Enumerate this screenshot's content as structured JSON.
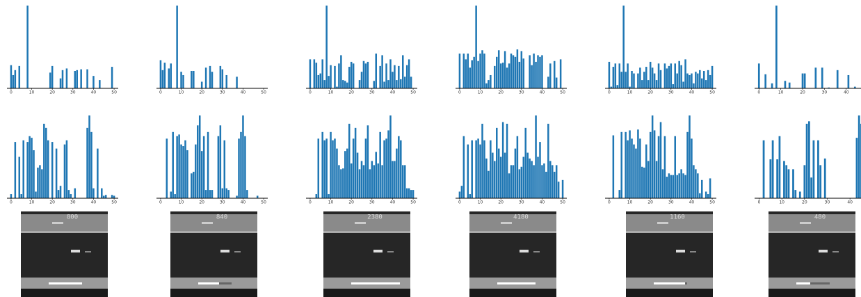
{
  "chart_data": [
    {
      "type": "bar",
      "color": "#1f77b4",
      "xlim": [
        -2,
        52
      ],
      "ylim": [
        0,
        100
      ],
      "xticks": [
        0,
        10,
        20,
        30,
        40,
        50
      ],
      "x": [
        0,
        1,
        2,
        4,
        8,
        19,
        20,
        24,
        25,
        27,
        31,
        32,
        34,
        37,
        40,
        43,
        49
      ],
      "values": [
        28,
        16,
        22,
        27,
        100,
        19,
        27,
        12,
        22,
        24,
        21,
        22,
        23,
        23,
        15,
        10,
        26
      ]
    },
    {
      "type": "bar",
      "color": "#1f77b4",
      "xlim": [
        -2,
        52
      ],
      "ylim": [
        0,
        100
      ],
      "xticks": [
        0,
        10,
        20,
        30,
        40,
        50
      ],
      "x": [
        0,
        1,
        2,
        4,
        5,
        8,
        10,
        11,
        15,
        16,
        20,
        22,
        24,
        25,
        29,
        30,
        32,
        37
      ],
      "values": [
        34,
        22,
        31,
        24,
        30,
        100,
        20,
        16,
        21,
        21,
        8,
        25,
        27,
        20,
        27,
        23,
        16,
        14
      ]
    },
    {
      "type": "bar",
      "color": "#1f77b4",
      "xlim": [
        -2,
        52
      ],
      "ylim": [
        0,
        100
      ],
      "xticks": [
        0,
        10,
        20,
        30,
        40,
        50
      ],
      "x": [
        0,
        1,
        2,
        3,
        4,
        5,
        6,
        7,
        8,
        9,
        10,
        11,
        12,
        13,
        14,
        15,
        16,
        17,
        18,
        19,
        20,
        21,
        22,
        23,
        24,
        25,
        26,
        27,
        28,
        29,
        30,
        31,
        32,
        33,
        34,
        35,
        36,
        37,
        38,
        39,
        40,
        41,
        42,
        43,
        44,
        45,
        46,
        47,
        48,
        49,
        50
      ],
      "values": [
        35,
        0,
        35,
        31,
        16,
        18,
        35,
        10,
        100,
        15,
        28,
        0,
        27,
        2,
        30,
        40,
        10,
        9,
        7,
        26,
        32,
        30,
        0,
        0,
        10,
        20,
        33,
        30,
        32,
        0,
        0,
        9,
        42,
        0,
        27,
        40,
        8,
        30,
        10,
        35,
        20,
        28,
        10,
        27,
        11,
        40,
        14,
        28,
        35,
        14,
        0
      ]
    },
    {
      "type": "bar",
      "color": "#1f77b4",
      "xlim": [
        -2,
        52
      ],
      "ylim": [
        0,
        100
      ],
      "xticks": [
        0,
        10,
        20,
        30,
        40,
        50
      ],
      "x": [
        0,
        1,
        2,
        3,
        4,
        5,
        6,
        7,
        8,
        9,
        10,
        11,
        12,
        13,
        14,
        15,
        16,
        17,
        18,
        19,
        20,
        21,
        22,
        23,
        24,
        25,
        26,
        27,
        28,
        29,
        30,
        31,
        32,
        33,
        34,
        35,
        36,
        37,
        38,
        39,
        40,
        41,
        42,
        43,
        44,
        45,
        46,
        47,
        48,
        49,
        50
      ],
      "values": [
        42,
        0,
        42,
        35,
        42,
        25,
        34,
        38,
        100,
        33,
        42,
        46,
        42,
        6,
        10,
        16,
        0,
        27,
        38,
        46,
        30,
        31,
        45,
        25,
        30,
        42,
        40,
        38,
        47,
        32,
        45,
        36,
        0,
        0,
        40,
        28,
        42,
        32,
        40,
        38,
        40,
        0,
        0,
        14,
        30,
        0,
        33,
        13,
        0,
        35,
        0
      ]
    },
    {
      "type": "bar",
      "color": "#1f77b4",
      "xlim": [
        -2,
        52
      ],
      "ylim": [
        0,
        100
      ],
      "xticks": [
        0,
        10,
        20,
        30,
        40,
        50
      ],
      "x": [
        0,
        1,
        2,
        3,
        4,
        5,
        6,
        7,
        8,
        9,
        10,
        11,
        12,
        13,
        14,
        15,
        16,
        17,
        18,
        19,
        20,
        21,
        22,
        23,
        24,
        25,
        26,
        27,
        28,
        29,
        30,
        31,
        32,
        33,
        34,
        35,
        36,
        37,
        38,
        39,
        40,
        41,
        42,
        43,
        44,
        45,
        46,
        47,
        48,
        49,
        50
      ],
      "values": [
        32,
        2,
        26,
        30,
        4,
        30,
        20,
        100,
        20,
        30,
        2,
        21,
        18,
        0,
        18,
        25,
        10,
        20,
        26,
        10,
        32,
        25,
        18,
        10,
        30,
        22,
        0,
        30,
        24,
        27,
        30,
        5,
        30,
        18,
        33,
        28,
        8,
        35,
        18,
        16,
        18,
        6,
        20,
        18,
        22,
        12,
        21,
        10,
        22,
        16,
        27
      ]
    },
    {
      "type": "bar",
      "color": "#1f77b4",
      "xlim": [
        -2,
        49
      ],
      "ylim": [
        0,
        100
      ],
      "xticks": [
        0,
        10,
        20,
        30,
        40
      ],
      "x": [
        0,
        3,
        6,
        8,
        12,
        14,
        20,
        21,
        26,
        29,
        32,
        36,
        41,
        44,
        48
      ],
      "values": [
        30,
        17,
        6,
        100,
        9,
        7,
        18,
        18,
        25,
        25,
        1,
        22,
        16,
        2,
        9
      ]
    },
    {
      "type": "bar",
      "color": "#1f77b4",
      "xlim": [
        -2,
        52
      ],
      "ylim": [
        0,
        100
      ],
      "xticks": [
        0,
        10,
        20,
        30,
        40,
        50
      ],
      "x": [
        0,
        1,
        2,
        3,
        4,
        5,
        6,
        7,
        8,
        9,
        10,
        11,
        12,
        13,
        14,
        15,
        16,
        17,
        18,
        19,
        20,
        21,
        22,
        23,
        24,
        25,
        26,
        27,
        28,
        29,
        30,
        31,
        32,
        33,
        34,
        35,
        36,
        37,
        38,
        39,
        40,
        41,
        42,
        43,
        44,
        45,
        46,
        47,
        48,
        49,
        50
      ],
      "values": [
        5,
        0,
        68,
        0,
        50,
        5,
        70,
        0,
        68,
        75,
        73,
        58,
        8,
        37,
        40,
        35,
        90,
        85,
        70,
        0,
        68,
        0,
        60,
        10,
        15,
        0,
        65,
        70,
        10,
        5,
        0,
        12,
        0,
        0,
        0,
        0,
        0,
        85,
        100,
        80,
        12,
        0,
        60,
        0,
        12,
        3,
        4,
        0,
        0,
        4,
        3
      ]
    },
    {
      "type": "bar",
      "color": "#1f77b4",
      "xlim": [
        -2,
        52
      ],
      "ylim": [
        0,
        100
      ],
      "xticks": [
        0,
        10,
        20,
        30,
        40,
        50
      ],
      "x": [
        0,
        1,
        2,
        3,
        4,
        5,
        6,
        7,
        8,
        9,
        10,
        11,
        12,
        13,
        14,
        15,
        16,
        17,
        18,
        19,
        20,
        21,
        22,
        23,
        24,
        25,
        26,
        27,
        28,
        29,
        30,
        31,
        32,
        33,
        34,
        35,
        36,
        37,
        38,
        39,
        40,
        41,
        42,
        43,
        44,
        45,
        46,
        47,
        48,
        49,
        50
      ],
      "values": [
        0,
        0,
        0,
        72,
        0,
        8,
        80,
        5,
        75,
        77,
        65,
        63,
        70,
        58,
        0,
        30,
        32,
        65,
        88,
        100,
        57,
        75,
        10,
        80,
        10,
        10,
        0,
        0,
        75,
        88,
        12,
        70,
        12,
        10,
        0,
        0,
        0,
        3,
        72,
        80,
        100,
        75,
        10,
        0,
        0,
        0,
        0,
        3,
        0,
        0,
        0
      ]
    },
    {
      "type": "bar",
      "color": "#1f77b4",
      "xlim": [
        -2,
        52
      ],
      "ylim": [
        0,
        100
      ],
      "xticks": [
        0,
        10,
        20,
        30,
        40,
        50
      ],
      "x": [
        0,
        1,
        2,
        3,
        4,
        5,
        6,
        7,
        8,
        9,
        10,
        11,
        12,
        13,
        14,
        15,
        16,
        17,
        18,
        19,
        20,
        21,
        22,
        23,
        24,
        25,
        26,
        27,
        28,
        29,
        30,
        31,
        32,
        33,
        34,
        35,
        36,
        37,
        38,
        39,
        40,
        41,
        42,
        43,
        44,
        45,
        46,
        47,
        48,
        49,
        50
      ],
      "values": [
        0,
        0,
        0,
        5,
        72,
        0,
        80,
        70,
        72,
        5,
        80,
        70,
        72,
        60,
        40,
        35,
        36,
        57,
        60,
        90,
        42,
        72,
        85,
        55,
        35,
        45,
        40,
        72,
        88,
        35,
        45,
        40,
        56,
        42,
        80,
        40,
        70,
        72,
        82,
        100,
        45,
        45,
        60,
        75,
        70,
        40,
        40,
        12,
        12,
        10,
        10
      ]
    },
    {
      "type": "bar",
      "color": "#1f77b4",
      "xlim": [
        -2,
        52
      ],
      "ylim": [
        0,
        100
      ],
      "xticks": [
        0,
        10,
        20,
        30,
        40,
        50
      ],
      "x": [
        0,
        1,
        2,
        3,
        4,
        5,
        6,
        7,
        8,
        9,
        10,
        11,
        12,
        13,
        14,
        15,
        16,
        17,
        18,
        19,
        20,
        21,
        22,
        23,
        24,
        25,
        26,
        27,
        28,
        29,
        30,
        31,
        32,
        33,
        34,
        35,
        36,
        37,
        38,
        39,
        40,
        41,
        42,
        43,
        44,
        45,
        46,
        47,
        48,
        49,
        50
      ],
      "values": [
        8,
        15,
        75,
        0,
        65,
        5,
        70,
        0,
        70,
        72,
        65,
        90,
        70,
        48,
        33,
        70,
        55,
        45,
        85,
        60,
        50,
        92,
        55,
        90,
        30,
        40,
        40,
        60,
        75,
        35,
        38,
        50,
        85,
        55,
        48,
        45,
        40,
        100,
        50,
        68,
        40,
        42,
        32,
        90,
        45,
        40,
        32,
        40,
        20,
        0,
        22
      ]
    },
    {
      "type": "bar",
      "color": "#1f77b4",
      "xlim": [
        -2,
        52
      ],
      "ylim": [
        0,
        100
      ],
      "xticks": [
        0,
        10,
        20,
        30,
        40,
        50
      ],
      "x": [
        0,
        1,
        2,
        3,
        4,
        5,
        6,
        7,
        8,
        9,
        10,
        11,
        12,
        13,
        14,
        15,
        16,
        17,
        18,
        19,
        20,
        21,
        22,
        23,
        24,
        25,
        26,
        27,
        28,
        29,
        30,
        31,
        32,
        33,
        34,
        35,
        36,
        37,
        38,
        39,
        40,
        41,
        42,
        43,
        44,
        45,
        46,
        47,
        48,
        49,
        50
      ],
      "values": [
        0,
        0,
        76,
        0,
        0,
        10,
        80,
        0,
        80,
        70,
        82,
        72,
        65,
        60,
        83,
        72,
        38,
        37,
        65,
        45,
        80,
        100,
        82,
        45,
        75,
        92,
        35,
        75,
        26,
        30,
        28,
        28,
        75,
        28,
        30,
        35,
        30,
        28,
        80,
        100,
        72,
        40,
        35,
        30,
        6,
        22,
        0,
        8,
        5,
        24,
        0
      ]
    },
    {
      "type": "bar",
      "color": "#1f77b4",
      "xlim": [
        -2,
        47
      ],
      "ylim": [
        0,
        100
      ],
      "xticks": [
        0,
        10,
        20,
        30,
        40
      ],
      "x": [
        0,
        1,
        2,
        3,
        4,
        5,
        6,
        7,
        8,
        9,
        10,
        11,
        12,
        13,
        14,
        15,
        16,
        17,
        18,
        19,
        20,
        21,
        22,
        23,
        24,
        25,
        26,
        27,
        28,
        29,
        30,
        31,
        32,
        33,
        34,
        35,
        36,
        37,
        38,
        39,
        40,
        41,
        42,
        43,
        44,
        45,
        46
      ],
      "values": [
        0,
        0,
        70,
        0,
        0,
        47,
        70,
        0,
        47,
        75,
        0,
        45,
        40,
        35,
        0,
        35,
        10,
        0,
        8,
        0,
        40,
        90,
        93,
        25,
        70,
        0,
        70,
        40,
        0,
        48,
        0,
        0,
        0,
        0,
        0,
        0,
        0,
        0,
        0,
        0,
        0,
        0,
        0,
        73,
        100,
        90,
        50
      ]
    }
  ],
  "game_frames": [
    {
      "score": "800"
    },
    {
      "score": "840"
    },
    {
      "score": "2380"
    },
    {
      "score": "4180"
    },
    {
      "score": "1160"
    },
    {
      "score": "480"
    }
  ]
}
